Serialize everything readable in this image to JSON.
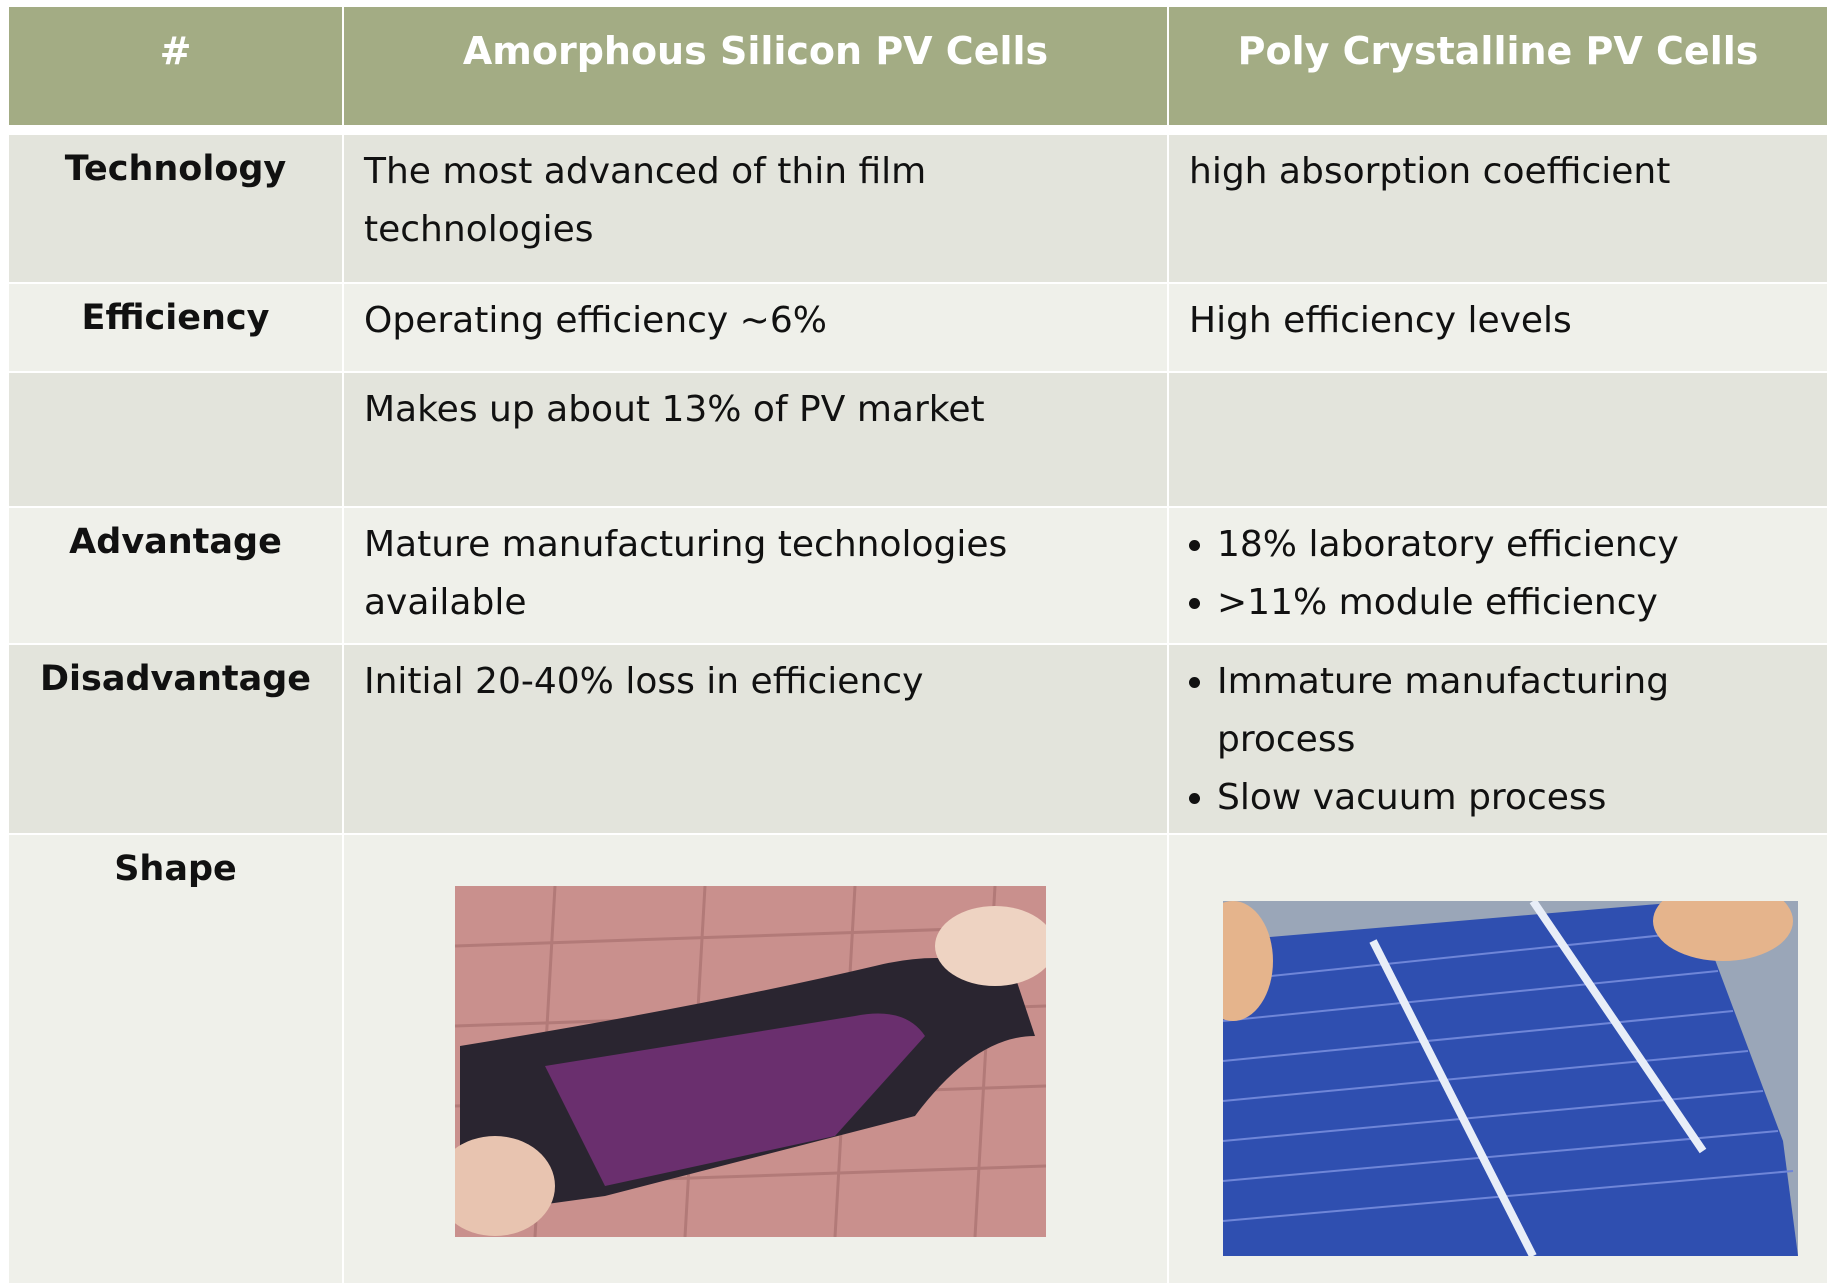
{
  "table": {
    "header": [
      "#",
      "Amorphous Silicon PV Cells",
      "Poly Crystalline PV Cells"
    ],
    "rows": [
      {
        "label": "Technology",
        "amorphous": "The most advanced of thin film technologies",
        "poly": "high absorption coefficient"
      },
      {
        "label": "Efficiency",
        "amorphous": "Operating efficiency ~6%",
        "poly": "High efficiency levels"
      },
      {
        "amorphous": "Makes up about 13% of PV market"
      },
      {
        "label": "Advantage",
        "amorphous": "Mature manufacturing technologies available",
        "poly": [
          "18% laboratory efficiency",
          ">11% module efficiency"
        ]
      },
      {
        "label": "Disadvantage",
        "amorphous": "Initial 20-40% loss in efficiency",
        "poly": [
          "Immature manufacturing process",
          "Slow vacuum process"
        ]
      },
      {
        "label": "Shape"
      }
    ]
  }
}
